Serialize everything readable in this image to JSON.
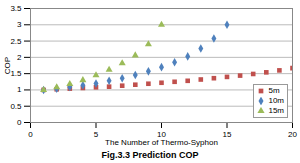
{
  "chart_data": {
    "type": "scatter",
    "title": "Fig.3.3 Prediction COP",
    "x_label": "The Number of Thermo-Syphon",
    "y_label": "COP",
    "xlim": [
      0,
      20
    ],
    "xticks": [
      0,
      5,
      10,
      15,
      20
    ],
    "ylim": [
      0,
      3.5
    ],
    "yticks": [
      0,
      0.5,
      1,
      1.5,
      2,
      2.5,
      3,
      3.5
    ],
    "grid": true,
    "legend": "bottom-right",
    "series": [
      {
        "name": "5m",
        "color": "#c0504d",
        "marker": "square",
        "x": [
          1,
          2,
          3,
          4,
          5,
          6,
          7,
          8,
          9,
          10,
          11,
          12,
          13,
          14,
          15,
          16,
          17,
          18,
          19,
          20
        ],
        "values": [
          1.0,
          1.02,
          1.04,
          1.06,
          1.08,
          1.1,
          1.13,
          1.16,
          1.19,
          1.22,
          1.25,
          1.28,
          1.32,
          1.36,
          1.4,
          1.44,
          1.49,
          1.54,
          1.6,
          1.67
        ]
      },
      {
        "name": "10m",
        "color": "#4f81bd",
        "marker": "diamond",
        "x": [
          1,
          2,
          3,
          4,
          5,
          6,
          7,
          8,
          9,
          10,
          11,
          12,
          13,
          14,
          15
        ],
        "values": [
          1.0,
          1.04,
          1.09,
          1.14,
          1.2,
          1.28,
          1.36,
          1.46,
          1.57,
          1.7,
          1.85,
          2.03,
          2.27,
          2.58,
          3.0
        ]
      },
      {
        "name": "15m",
        "color": "#9bbb59",
        "marker": "triangle",
        "x": [
          1,
          2,
          3,
          4,
          5,
          6,
          7,
          8,
          9,
          10
        ],
        "values": [
          1.0,
          1.08,
          1.18,
          1.3,
          1.45,
          1.62,
          1.82,
          2.06,
          2.4,
          3.0
        ]
      }
    ]
  }
}
